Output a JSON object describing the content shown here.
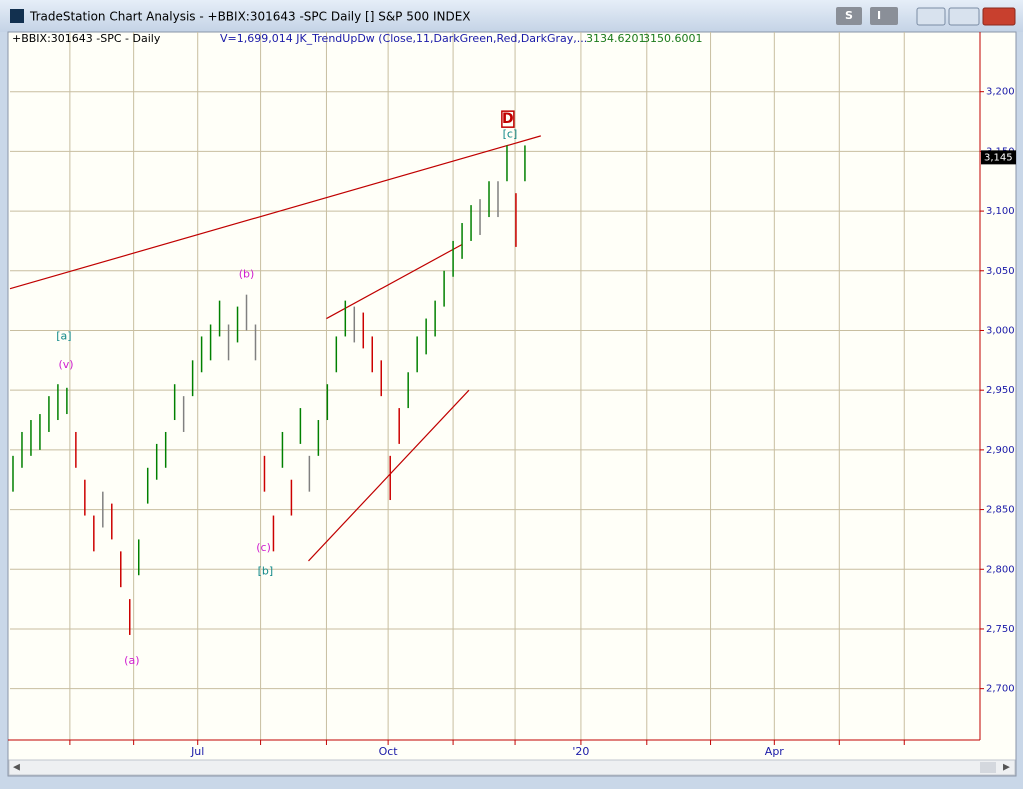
{
  "window": {
    "title": "TradeStation Chart Analysis - +BBIX:301643 -SPC Daily [] S&P 500 INDEX",
    "buttons": [
      "S",
      "I"
    ]
  },
  "info": {
    "symbol": "+BBIX:301643 -SPC - Daily",
    "indicator": "V=1,699,014  JK_TrendUpDw (Close,11,DarkGreen,Red,DarkGray,...",
    "value1": "3134.6201",
    "value2": "3150.6001"
  },
  "chart_data": {
    "type": "range_bar",
    "x": [
      0,
      3,
      6,
      9,
      12,
      15,
      18,
      21,
      24,
      27,
      30,
      33,
      36,
      39,
      42,
      45,
      48,
      51,
      54,
      57,
      60,
      63,
      66,
      69,
      72,
      75,
      78,
      81,
      84,
      87,
      90,
      93,
      96,
      99,
      102,
      105,
      108,
      111,
      114,
      117,
      120,
      123,
      126,
      129,
      132,
      135,
      138,
      141,
      144,
      147,
      150,
      153,
      156,
      159,
      162,
      165,
      168,
      171
    ],
    "series": [
      {
        "high": [
          2895,
          2915,
          2925,
          2930,
          2945,
          2955,
          2952,
          2915,
          2875,
          2845,
          2865,
          2855,
          2815,
          2775,
          2825,
          2885,
          2905,
          2915,
          2955,
          2945,
          2975,
          2995,
          3005,
          3025,
          3005,
          3020,
          3030,
          3005,
          2895,
          2845,
          2915,
          2875,
          2935,
          2895,
          2925,
          2955,
          2995,
          3025,
          3020,
          3015,
          2995,
          2975,
          2895,
          2935,
          2965,
          2995,
          3010,
          3025,
          3050,
          3075,
          3090,
          3105,
          3110,
          3125,
          3125,
          3155,
          3115,
          3155
        ],
        "low": [
          2865,
          2885,
          2895,
          2900,
          2915,
          2925,
          2930,
          2885,
          2845,
          2815,
          2835,
          2825,
          2785,
          2745,
          2795,
          2855,
          2875,
          2885,
          2925,
          2915,
          2945,
          2965,
          2975,
          2995,
          2975,
          2990,
          3000,
          2975,
          2865,
          2815,
          2885,
          2845,
          2905,
          2865,
          2895,
          2925,
          2965,
          2995,
          2990,
          2985,
          2965,
          2945,
          2858,
          2905,
          2935,
          2965,
          2980,
          2995,
          3020,
          3045,
          3060,
          3075,
          3080,
          3095,
          3095,
          3125,
          3070,
          3125
        ],
        "colors": [
          "#008000",
          "#008000",
          "#008000",
          "#008000",
          "#008000",
          "#008000",
          "#008000",
          "#cc0000",
          "#cc0000",
          "#cc0000",
          "#808080",
          "#cc0000",
          "#cc0000",
          "#cc0000",
          "#008000",
          "#008000",
          "#008000",
          "#008000",
          "#008000",
          "#808080",
          "#008000",
          "#008000",
          "#008000",
          "#008000",
          "#808080",
          "#008000",
          "#808080",
          "#808080",
          "#cc0000",
          "#cc0000",
          "#008000",
          "#cc0000",
          "#008000",
          "#808080",
          "#008000",
          "#008000",
          "#008000",
          "#008000",
          "#808080",
          "#cc0000",
          "#cc0000",
          "#cc0000",
          "#cc0000",
          "#cc0000",
          "#008000",
          "#008000",
          "#008000",
          "#008000",
          "#008000",
          "#008000",
          "#008000",
          "#008000",
          "#808080",
          "#008000",
          "#808080",
          "#008000",
          "#cc0000",
          "#008000"
        ]
      }
    ],
    "xlim": [
      -1,
      323
    ],
    "ylim": [
      2657,
      3250
    ],
    "yticks": [
      {
        "value": 2700,
        "label": "2,700"
      },
      {
        "value": 2750,
        "label": "2,750"
      },
      {
        "value": 2800,
        "label": "2,800"
      },
      {
        "value": 2850,
        "label": "2,850"
      },
      {
        "value": 2900,
        "label": "2,900"
      },
      {
        "value": 2950,
        "label": "2,950"
      },
      {
        "value": 3000,
        "label": "3,000"
      },
      {
        "value": 3050,
        "label": "3,050"
      },
      {
        "value": 3100,
        "label": "3,100"
      },
      {
        "value": 3150,
        "label": "3,150"
      },
      {
        "value": 3200,
        "label": "3,200"
      }
    ],
    "xticks": [
      {
        "value": 19,
        "label": null
      },
      {
        "value": 40.3,
        "label": null
      },
      {
        "value": 61.7,
        "label": "Jul"
      },
      {
        "value": 82.7,
        "label": null
      },
      {
        "value": 104.7,
        "label": null
      },
      {
        "value": 125.3,
        "label": "Oct"
      },
      {
        "value": 147,
        "label": null
      },
      {
        "value": 167.7,
        "label": null
      },
      {
        "value": 189.7,
        "label": "'20"
      },
      {
        "value": 211.7,
        "label": null
      },
      {
        "value": 233,
        "label": null
      },
      {
        "value": 254.3,
        "label": "Apr"
      },
      {
        "value": 276,
        "label": null
      },
      {
        "value": 297.7,
        "label": null
      }
    ],
    "grid": true,
    "grid_color": "#c8bea0",
    "trend_lines": [
      {
        "x": [
          -1,
          176.3
        ],
        "y": [
          3035,
          3163
        ],
        "color": "#c00000"
      },
      {
        "x": [
          104.7,
          150
        ],
        "y": [
          3010,
          3072
        ],
        "color": "#c00000"
      },
      {
        "x": [
          98.7,
          152.3
        ],
        "y": [
          2807,
          2950
        ],
        "color": "#c00000"
      }
    ],
    "annotations": [
      {
        "text": "[a]",
        "x": 17,
        "y": 2995,
        "color": "#138a8a"
      },
      {
        "text": "(v)",
        "x": 17.7,
        "y": 2971,
        "color": "#d020d0"
      },
      {
        "text": "(a)",
        "x": 39.7,
        "y": 2723,
        "color": "#d020d0"
      },
      {
        "text": "(b)",
        "x": 78,
        "y": 3047,
        "color": "#d020d0"
      },
      {
        "text": "(c)",
        "x": 83.7,
        "y": 2818,
        "color": "#d020d0"
      },
      {
        "text": "[b]",
        "x": 84.3,
        "y": 2798,
        "color": "#138a8a"
      },
      {
        "text": "D",
        "x": 165.3,
        "y": 3177,
        "color": "#c00000",
        "boxed": true
      },
      {
        "text": "[c]",
        "x": 166,
        "y": 3164,
        "color": "#138a8a"
      }
    ],
    "last_price": {
      "value": 3145,
      "label": "3,145"
    }
  }
}
